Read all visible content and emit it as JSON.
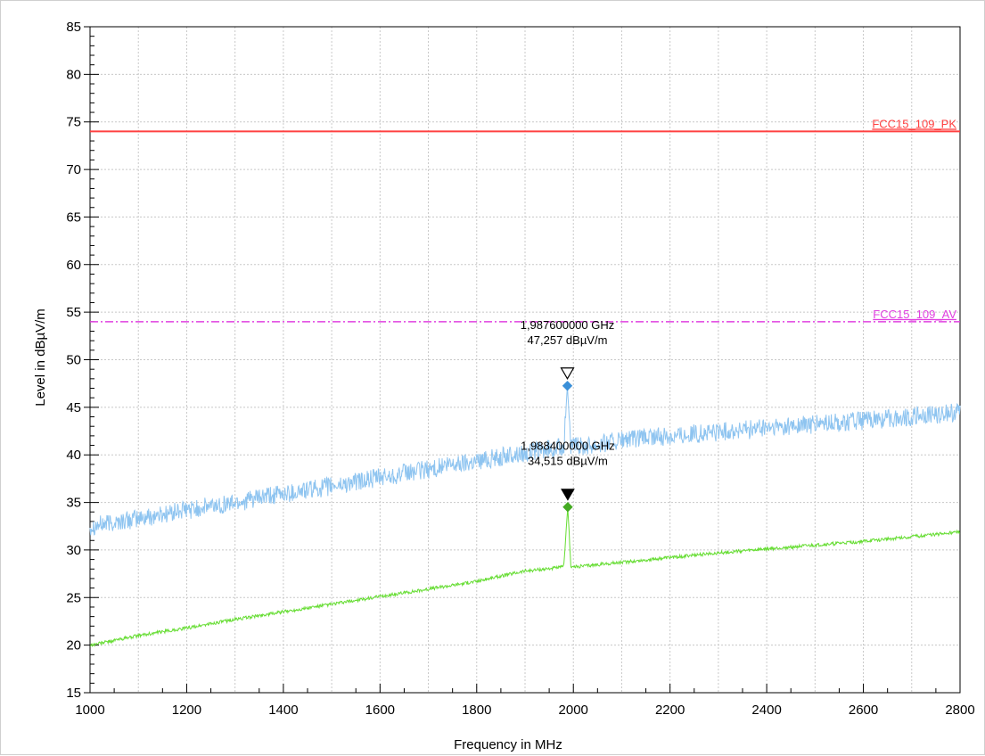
{
  "chart_data": {
    "type": "line",
    "xlabel": "Frequency in MHz",
    "ylabel": "Level in dBµV/m",
    "xlim": [
      1000,
      2800
    ],
    "ylim": [
      15,
      85
    ],
    "x_ticks": [
      "1000",
      "1200",
      "1400",
      "1600",
      "1800",
      "2000",
      "2200",
      "2400",
      "2600",
      "2800"
    ],
    "y_ticks": [
      "15",
      "20",
      "25",
      "30",
      "35",
      "40",
      "45",
      "50",
      "55",
      "60",
      "65",
      "70",
      "75",
      "80",
      "85"
    ],
    "grid": true,
    "limit_lines": [
      {
        "name": "FCC15_109_PK",
        "value": 74,
        "color": "#ff4040",
        "style": "solid"
      },
      {
        "name": "FCC15_109_AV",
        "value": 54,
        "color": "#e040e0",
        "style": "dash-dot"
      }
    ],
    "series": [
      {
        "color": "#8ec4f0",
        "x": [
          1000,
          1100,
          1200,
          1300,
          1400,
          1500,
          1600,
          1700,
          1800,
          1900,
          1980,
          1987.6,
          1995,
          2100,
          2200,
          2300,
          2400,
          2500,
          2600,
          2700,
          2800
        ],
        "values": [
          32.5,
          33.3,
          34.2,
          35.0,
          35.9,
          36.7,
          37.6,
          38.5,
          39.4,
          40.2,
          40.8,
          47.257,
          40.8,
          41.5,
          42.0,
          42.4,
          42.8,
          43.2,
          43.6,
          44.0,
          44.5
        ]
      },
      {
        "color": "#66dd33",
        "x": [
          1000,
          1100,
          1200,
          1300,
          1400,
          1500,
          1600,
          1700,
          1800,
          1900,
          1980,
          1988.4,
          1995,
          2100,
          2200,
          2300,
          2400,
          2500,
          2600,
          2700,
          2800
        ],
        "values": [
          20.0,
          21.0,
          21.8,
          22.7,
          23.5,
          24.3,
          25.1,
          25.9,
          26.7,
          27.8,
          28.2,
          34.515,
          28.2,
          28.7,
          29.2,
          29.7,
          30.1,
          30.5,
          30.9,
          31.4,
          31.9
        ]
      }
    ],
    "markers": [
      {
        "freq_label": "1,987600000 GHz",
        "level_label": "47,257 dBµV/m",
        "x": 1987.6,
        "y": 47.257,
        "type": "open-triangle",
        "color": "#3a8fd8"
      },
      {
        "freq_label": "1,988400000 GHz",
        "level_label": "34,515 dBµV/m",
        "x": 1988.4,
        "y": 34.515,
        "type": "filled-triangle",
        "color": "#44aa22"
      }
    ]
  }
}
